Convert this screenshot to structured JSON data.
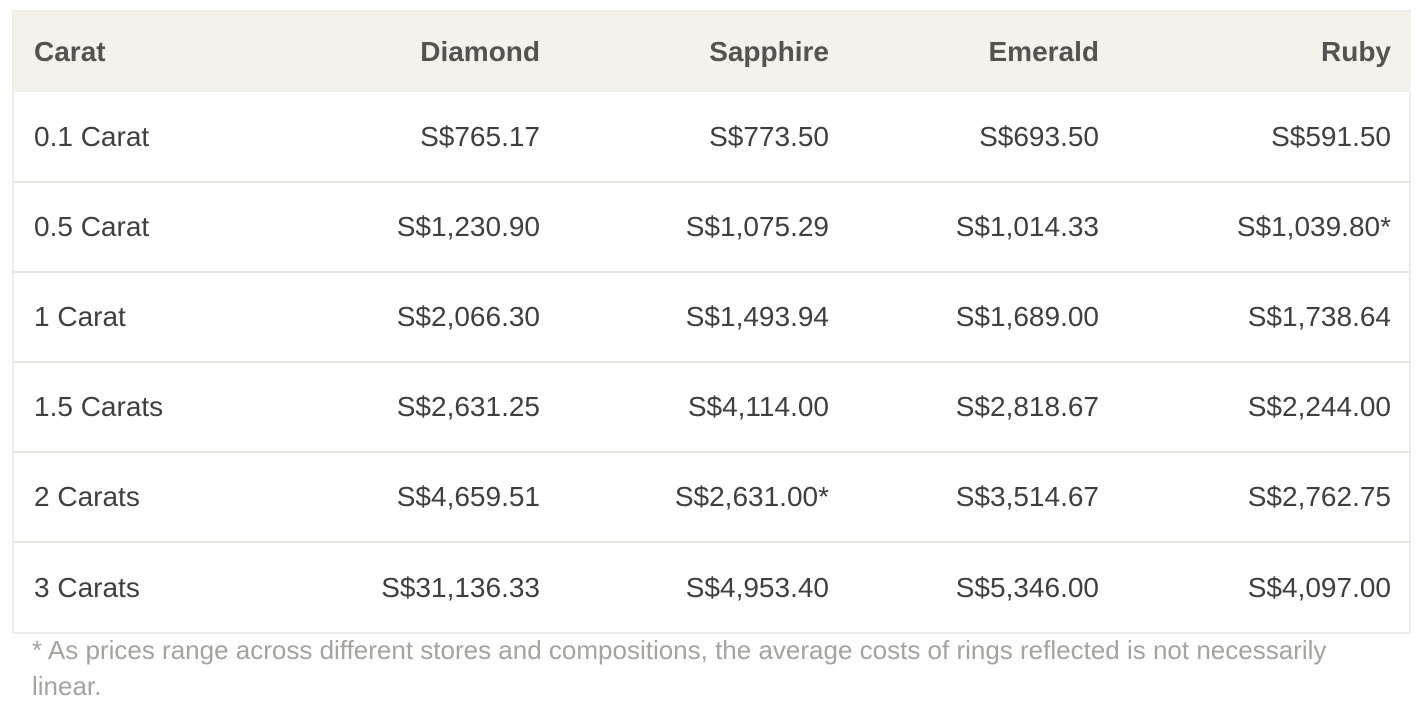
{
  "table": {
    "headers": [
      "Carat",
      "Diamond",
      "Sapphire",
      "Emerald",
      "Ruby"
    ],
    "rows": [
      [
        "0.1 Carat",
        "S$765.17",
        "S$773.50",
        "S$693.50",
        "S$591.50"
      ],
      [
        "0.5 Carat",
        "S$1,230.90",
        "S$1,075.29",
        "S$1,014.33",
        "S$1,039.80*"
      ],
      [
        "1 Carat",
        "S$2,066.30",
        "S$1,493.94",
        "S$1,689.00",
        "S$1,738.64"
      ],
      [
        "1.5 Carats",
        "S$2,631.25",
        "S$4,114.00",
        "S$2,818.67",
        "S$2,244.00"
      ],
      [
        "2 Carats",
        "S$4,659.51",
        "S$2,631.00*",
        "S$3,514.67",
        "S$2,762.75"
      ],
      [
        "3 Carats",
        "S$31,136.33",
        "S$4,953.40",
        "S$5,346.00",
        "S$4,097.00"
      ]
    ]
  },
  "footnote": "* As prices range across different stores and compositions, the average costs of rings reflected is not necessarily linear.",
  "colors": {
    "header_bg": "#f5f2ec",
    "border": "#ebe7df",
    "footnote_text": "#a6a39e"
  }
}
